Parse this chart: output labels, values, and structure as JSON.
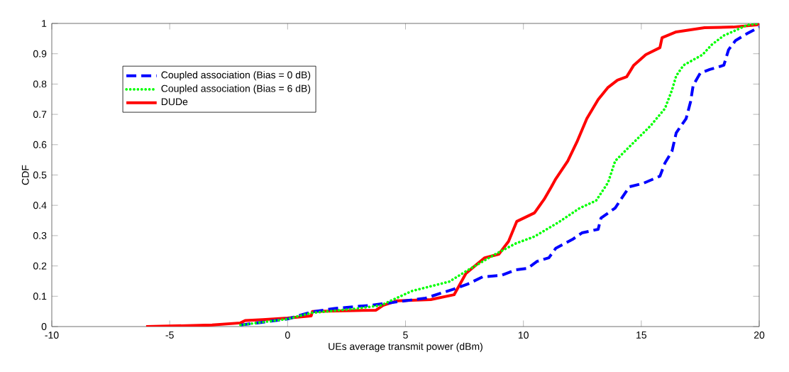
{
  "chart_data": {
    "type": "line",
    "xlabel": "UEs average transmit power (dBm)",
    "ylabel": "CDF",
    "xlim": [
      -10,
      20
    ],
    "ylim": [
      0,
      1
    ],
    "xticks": [
      -10,
      -5,
      0,
      5,
      10,
      15,
      20
    ],
    "yticks": [
      0,
      0.1,
      0.2,
      0.3,
      0.4,
      0.5,
      0.6,
      0.7,
      0.8,
      0.9,
      1
    ],
    "grid": false,
    "legend": "top left",
    "marker": "none",
    "series": [
      {
        "name": "Coupled association (Bias = 0 dB)",
        "color": "#0000ff",
        "line_style": "dashed",
        "x": [
          -2,
          0,
          1,
          2,
          3.5,
          4,
          5.86,
          7.06,
          7.66,
          8.27,
          9.07,
          9.67,
          10.17,
          10.58,
          11.08,
          11.37,
          12.09,
          12.48,
          13.17,
          13.29,
          13.89,
          14.49,
          15.1,
          15.79,
          16.0,
          16.3,
          16.48,
          16.9,
          17.09,
          17.2,
          17.5,
          17.9,
          18.5,
          18.7,
          19.0,
          19.5,
          20
        ],
        "values": [
          0.005,
          0.025,
          0.048,
          0.06,
          0.07,
          0.075,
          0.094,
          0.124,
          0.141,
          0.164,
          0.169,
          0.187,
          0.192,
          0.215,
          0.227,
          0.258,
          0.288,
          0.309,
          0.321,
          0.358,
          0.391,
          0.461,
          0.473,
          0.496,
          0.539,
          0.578,
          0.639,
          0.686,
          0.742,
          0.796,
          0.836,
          0.848,
          0.862,
          0.913,
          0.944,
          0.967,
          0.988
        ]
      },
      {
        "name": "Coupled association (Bias = 6 dB)",
        "color": "#00ff00",
        "line_style": "dotted",
        "x": [
          -2,
          0,
          1,
          3,
          3.96,
          5.26,
          6.85,
          7.66,
          8.86,
          9.67,
          10.47,
          11.49,
          12.39,
          13.08,
          13.59,
          13.89,
          14.49,
          15.4,
          16.0,
          16.3,
          16.48,
          16.79,
          17.6,
          17.99,
          18.5,
          19.0,
          19.5,
          20
        ],
        "values": [
          0.005,
          0.025,
          0.045,
          0.06,
          0.07,
          0.117,
          0.148,
          0.187,
          0.241,
          0.274,
          0.297,
          0.344,
          0.391,
          0.415,
          0.475,
          0.546,
          0.593,
          0.663,
          0.719,
          0.78,
          0.827,
          0.862,
          0.897,
          0.93,
          0.96,
          0.977,
          0.995,
          1
        ]
      },
      {
        "name": "DUDe",
        "color": "#ff0000",
        "line_style": "solid",
        "x": [
          -6.0,
          -3.2,
          -2,
          -1.8,
          -1.05,
          0,
          1.0,
          1.05,
          3.75,
          4.05,
          4.65,
          6.07,
          7.06,
          7.57,
          8.36,
          8.96,
          9.37,
          9.72,
          10.47,
          10.88,
          11.18,
          11.37,
          11.88,
          12.27,
          12.69,
          13.17,
          13.59,
          13.99,
          14.38,
          14.68,
          15.19,
          15.79,
          15.88,
          16.48,
          17.68,
          18.89,
          19.9,
          20
        ],
        "values": [
          0,
          0.005,
          0.012,
          0.02,
          0.023,
          0.028,
          0.035,
          0.05,
          0.054,
          0.07,
          0.085,
          0.089,
          0.105,
          0.176,
          0.227,
          0.239,
          0.281,
          0.347,
          0.375,
          0.42,
          0.46,
          0.487,
          0.546,
          0.609,
          0.686,
          0.749,
          0.789,
          0.813,
          0.824,
          0.862,
          0.897,
          0.92,
          0.953,
          0.972,
          0.986,
          0.988,
          0.995,
          1
        ]
      }
    ]
  }
}
